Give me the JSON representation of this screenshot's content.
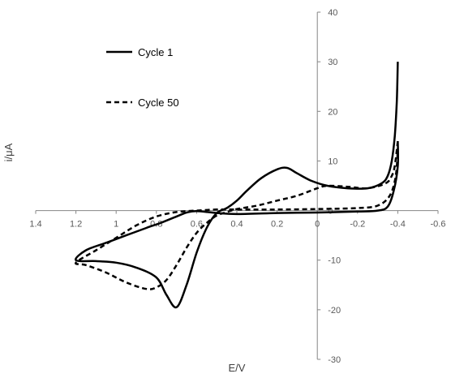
{
  "chart_data": {
    "type": "line",
    "xlabel": "E/V",
    "ylabel": "i/μA",
    "x_reversed": true,
    "xlim": [
      -0.6,
      1.4
    ],
    "ylim": [
      -30,
      40
    ],
    "x_ticks": [
      1.4,
      1.2,
      1,
      0.8,
      0.6,
      0.4,
      0.2,
      0,
      -0.2,
      -0.4,
      -0.6
    ],
    "x_tick_labels": [
      "1.4",
      "1.2",
      "1",
      "0.8",
      "0.6",
      "0.4",
      "0.2",
      "0",
      "-0.2",
      "-0.4",
      "-0.6"
    ],
    "y_ticks": [
      -30,
      -20,
      -10,
      0,
      10,
      20,
      30,
      40
    ],
    "y_tick_labels": [
      "-30",
      "-20",
      "-10",
      "0",
      "10",
      "20",
      "30",
      "40"
    ],
    "grid": false,
    "legend_position": "top-left",
    "series": [
      {
        "name": "Cycle 1",
        "style": "solid",
        "color": "#000000",
        "points": [
          [
            -0.4,
            30
          ],
          [
            -0.395,
            22
          ],
          [
            -0.385,
            15
          ],
          [
            -0.37,
            10
          ],
          [
            -0.35,
            7
          ],
          [
            -0.32,
            5.5
          ],
          [
            -0.25,
            4.5
          ],
          [
            -0.15,
            4.5
          ],
          [
            -0.05,
            5
          ],
          [
            0.03,
            6
          ],
          [
            0.1,
            7.5
          ],
          [
            0.15,
            8.6
          ],
          [
            0.2,
            8.3
          ],
          [
            0.28,
            6.5
          ],
          [
            0.35,
            4
          ],
          [
            0.4,
            2
          ],
          [
            0.45,
            0.5
          ],
          [
            0.5,
            -0.5
          ],
          [
            0.55,
            -3.5
          ],
          [
            0.6,
            -8.5
          ],
          [
            0.65,
            -15
          ],
          [
            0.7,
            -19.5
          ],
          [
            0.75,
            -17
          ],
          [
            0.8,
            -13.5
          ],
          [
            0.9,
            -11.5
          ],
          [
            1.0,
            -10.5
          ],
          [
            1.1,
            -10.2
          ],
          [
            1.2,
            -10
          ],
          [
            1.15,
            -8
          ],
          [
            1.05,
            -6.5
          ],
          [
            0.95,
            -5
          ],
          [
            0.85,
            -3.5
          ],
          [
            0.78,
            -2.5
          ],
          [
            0.7,
            -1.2
          ],
          [
            0.65,
            -0.4
          ],
          [
            0.6,
            -0.1
          ],
          [
            0.5,
            -0.5
          ],
          [
            0.4,
            -0.7
          ],
          [
            0.2,
            -0.5
          ],
          [
            0.0,
            -0.4
          ],
          [
            -0.2,
            -0.2
          ],
          [
            -0.3,
            0
          ],
          [
            -0.35,
            0.8
          ],
          [
            -0.38,
            4
          ],
          [
            -0.4,
            9
          ],
          [
            -0.4,
            14
          ]
        ]
      },
      {
        "name": "Cycle 50",
        "style": "dashed",
        "color": "#000000",
        "points": [
          [
            -0.4,
            14
          ],
          [
            -0.385,
            9
          ],
          [
            -0.37,
            7
          ],
          [
            -0.34,
            5.5
          ],
          [
            -0.25,
            4.5
          ],
          [
            -0.15,
            4.8
          ],
          [
            -0.05,
            5
          ],
          [
            0.0,
            4.5
          ],
          [
            0.1,
            3
          ],
          [
            0.2,
            2
          ],
          [
            0.3,
            1
          ],
          [
            0.4,
            0.3
          ],
          [
            0.45,
            -0.3
          ],
          [
            0.5,
            -1
          ],
          [
            0.55,
            -2.5
          ],
          [
            0.6,
            -4.5
          ],
          [
            0.65,
            -7.5
          ],
          [
            0.7,
            -11
          ],
          [
            0.75,
            -14
          ],
          [
            0.8,
            -15.5
          ],
          [
            0.85,
            -15.8
          ],
          [
            0.95,
            -14.5
          ],
          [
            1.05,
            -12.5
          ],
          [
            1.15,
            -11
          ],
          [
            1.2,
            -10.5
          ],
          [
            1.1,
            -8
          ],
          [
            1.0,
            -5.5
          ],
          [
            0.9,
            -3
          ],
          [
            0.8,
            -1.2
          ],
          [
            0.7,
            -0.3
          ],
          [
            0.6,
            0
          ],
          [
            0.5,
            0.2
          ],
          [
            0.4,
            0.2
          ],
          [
            0.2,
            0.2
          ],
          [
            0.0,
            0.3
          ],
          [
            -0.2,
            0.5
          ],
          [
            -0.3,
            1
          ],
          [
            -0.36,
            3
          ],
          [
            -0.39,
            7
          ],
          [
            -0.4,
            12.5
          ]
        ]
      }
    ]
  }
}
